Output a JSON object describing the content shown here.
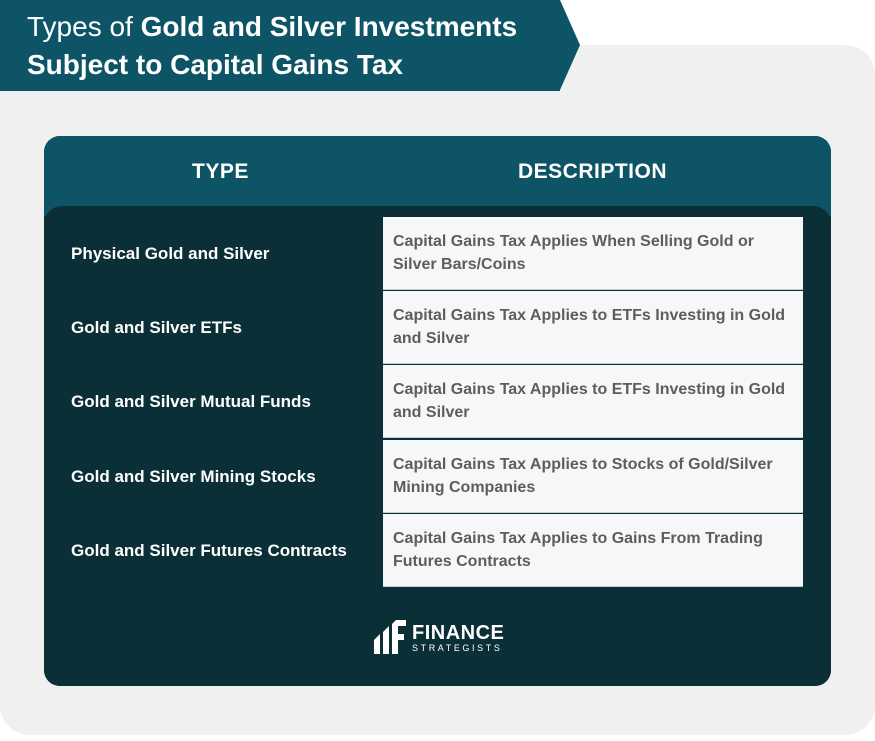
{
  "title": {
    "prefix": "Types of ",
    "bold_line1": "Gold and Silver Investments",
    "bold_line2": "Subject to Capital Gains Tax"
  },
  "table": {
    "headers": {
      "type": "TYPE",
      "description": "DESCRIPTION"
    },
    "rows": [
      {
        "type": "Physical Gold and Silver",
        "description": "Capital Gains Tax Applies When Selling Gold or Silver Bars/Coins"
      },
      {
        "type": "Gold and Silver ETFs",
        "description": "Capital Gains Tax Applies to ETFs Investing in Gold and Silver"
      },
      {
        "type": "Gold and Silver Mutual Funds",
        "description": "Capital Gains Tax Applies to ETFs Investing in Gold and Silver"
      },
      {
        "type": "Gold and Silver Mining Stocks",
        "description": "Capital Gains Tax Applies to Stocks of Gold/Silver Mining Companies"
      },
      {
        "type": "Gold and Silver Futures Contracts",
        "description": "Capital Gains Tax Applies to Gains From Trading Futures Contracts"
      }
    ]
  },
  "logo": {
    "line1": "FINANCE",
    "line2": "STRATEGISTS"
  },
  "colors": {
    "banner": "#0d5566",
    "table_body": "#0b2f36",
    "cell_bg": "#f6f7f9",
    "cell_text": "#5d5d5d"
  }
}
